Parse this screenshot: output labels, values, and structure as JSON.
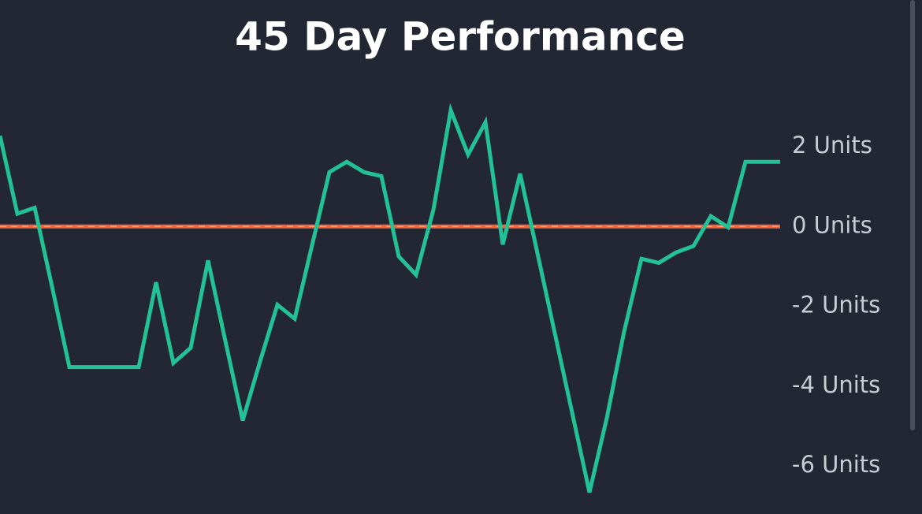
{
  "chart_data": {
    "type": "line",
    "title": "45 Day Performance",
    "series": [
      {
        "color": "#22c196",
        "values": [
          2.27,
          0.32,
          0.47,
          -1.5,
          -3.52,
          -3.52,
          -3.52,
          -3.52,
          -3.52,
          -1.4,
          -3.42,
          -3.04,
          -0.85,
          -2.87,
          -4.86,
          -3.38,
          -1.96,
          -2.31,
          -0.47,
          1.36,
          1.62,
          1.36,
          1.26,
          -0.75,
          -1.21,
          0.42,
          2.91,
          1.8,
          2.61,
          -0.45,
          1.32,
          -0.67,
          -2.67,
          -4.66,
          -6.66,
          -4.8,
          -2.63,
          -0.81,
          -0.91,
          -0.65,
          -0.49,
          0.26,
          -0.02,
          1.62,
          1.62,
          1.62
        ]
      }
    ],
    "ylim": [
      -7.2,
      3.5
    ],
    "yticks": [
      {
        "value": 2,
        "label": "2 Units"
      },
      {
        "value": 0,
        "label": "0 Units"
      },
      {
        "value": -2,
        "label": "-2 Units"
      },
      {
        "value": -4,
        "label": "-4 Units"
      },
      {
        "value": -6,
        "label": "-6 Units"
      }
    ],
    "reference_line": {
      "value": 0,
      "color": "#ef653e"
    }
  }
}
